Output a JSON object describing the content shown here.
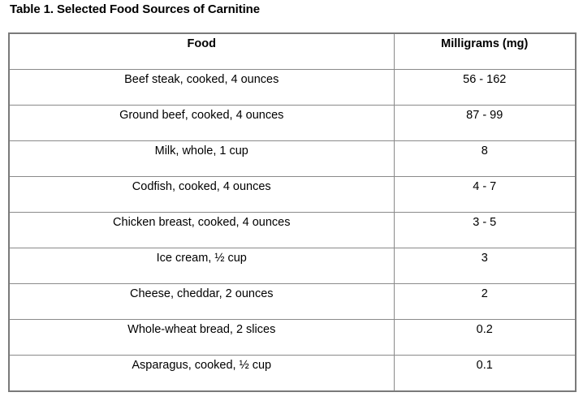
{
  "caption": "Table 1. Selected Food Sources of Carnitine",
  "table": {
    "headers": [
      "Food",
      "Milligrams (mg)"
    ],
    "rows": [
      [
        "Beef steak, cooked, 4 ounces",
        "56 - 162"
      ],
      [
        "Ground beef, cooked, 4 ounces",
        "87 - 99"
      ],
      [
        "Milk, whole, 1 cup",
        "8"
      ],
      [
        "Codfish, cooked, 4 ounces",
        "4 - 7"
      ],
      [
        "Chicken breast, cooked, 4 ounces",
        "3 - 5"
      ],
      [
        "Ice cream, ½ cup",
        "3"
      ],
      [
        "Cheese, cheddar, 2 ounces",
        "2"
      ],
      [
        "Whole-wheat bread, 2 slices",
        "0.2"
      ],
      [
        "Asparagus, cooked, ½ cup",
        "0.1"
      ]
    ]
  }
}
